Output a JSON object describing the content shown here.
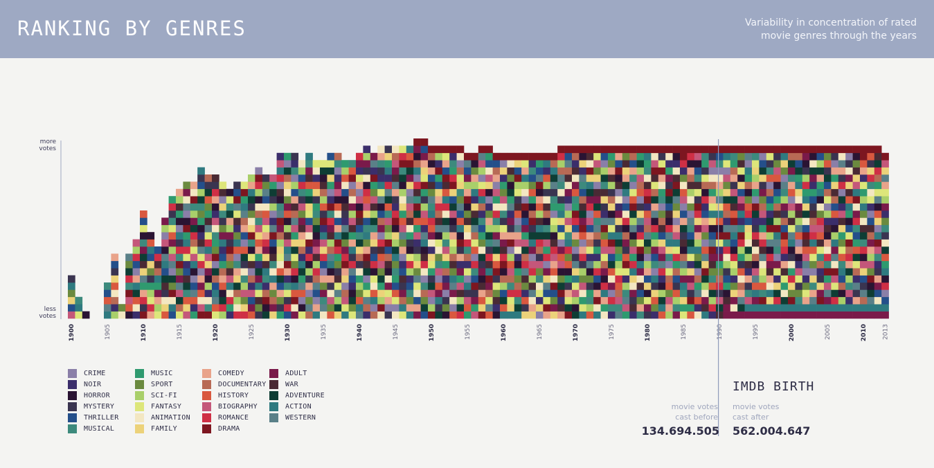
{
  "header": {
    "title": "RANKING BY GENRES",
    "subtitle_line1": "Variability in concentration of rated",
    "subtitle_line2": "movie genres through the years"
  },
  "axis": {
    "top_label_line1": "more",
    "top_label_line2": "votes",
    "bottom_label_line1": "less",
    "bottom_label_line2": "votes"
  },
  "chart_data": {
    "type": "heatmap",
    "title": "RANKING BY GENRES",
    "subtitle": "Variability in concentration of rated movie genres through the years",
    "x_range": [
      1900,
      2013
    ],
    "x_tick_labels": [
      "1900",
      "1905",
      "1910",
      "1915",
      "1920",
      "1925",
      "1930",
      "1935",
      "1940",
      "1945",
      "1950",
      "1955",
      "1960",
      "1965",
      "1970",
      "1975",
      "1980",
      "1985",
      "1990",
      "1995",
      "2000",
      "2005",
      "2010",
      "2013"
    ],
    "major_ticks": [
      "1900",
      "1910",
      "1920",
      "1930",
      "1940",
      "1950",
      "1960",
      "1970",
      "1980",
      "2000",
      "2010"
    ],
    "marker_year": "1990",
    "y_axis": "genres ranked by votes, from less votes (bottom) to more votes (top)",
    "genre_counts_by_year": [
      {
        "year": 1900,
        "count": 6
      },
      {
        "year": 1901,
        "count": 3
      },
      {
        "year": 1902,
        "count": 1
      },
      {
        "year": 1903,
        "count": 0
      },
      {
        "year": 1904,
        "count": 0
      },
      {
        "year": 1905,
        "count": 5
      },
      {
        "year": 1906,
        "count": 9
      },
      {
        "year": 1907,
        "count": 2
      },
      {
        "year": 1908,
        "count": 9
      },
      {
        "year": 1909,
        "count": 11
      },
      {
        "year": 1910,
        "count": 15
      },
      {
        "year": 1911,
        "count": 12
      },
      {
        "year": 1912,
        "count": 10
      },
      {
        "year": 1913,
        "count": 14
      },
      {
        "year": 1914,
        "count": 17
      },
      {
        "year": 1915,
        "count": 18
      },
      {
        "year": 1916,
        "count": 19
      },
      {
        "year": 1917,
        "count": 19
      },
      {
        "year": 1918,
        "count": 21
      },
      {
        "year": 1919,
        "count": 20
      },
      {
        "year": 1920,
        "count": 20
      },
      {
        "year": 1921,
        "count": 19
      },
      {
        "year": 1922,
        "count": 18
      },
      {
        "year": 1923,
        "count": 19
      },
      {
        "year": 1924,
        "count": 19
      },
      {
        "year": 1925,
        "count": 20
      },
      {
        "year": 1926,
        "count": 21
      },
      {
        "year": 1927,
        "count": 20
      },
      {
        "year": 1928,
        "count": 20
      },
      {
        "year": 1929,
        "count": 23
      },
      {
        "year": 1930,
        "count": 23
      },
      {
        "year": 1931,
        "count": 23
      },
      {
        "year": 1932,
        "count": 22
      },
      {
        "year": 1933,
        "count": 23
      },
      {
        "year": 1934,
        "count": 22
      },
      {
        "year": 1935,
        "count": 22
      },
      {
        "year": 1936,
        "count": 23
      },
      {
        "year": 1937,
        "count": 23
      },
      {
        "year": 1938,
        "count": 22
      },
      {
        "year": 1939,
        "count": 22
      },
      {
        "year": 1940,
        "count": 23
      },
      {
        "year": 1941,
        "count": 24
      },
      {
        "year": 1942,
        "count": 23
      },
      {
        "year": 1943,
        "count": 24
      },
      {
        "year": 1944,
        "count": 24
      },
      {
        "year": 1945,
        "count": 24
      },
      {
        "year": 1946,
        "count": 24
      },
      {
        "year": 1947,
        "count": 24
      },
      {
        "year": 1948,
        "count": 25
      },
      {
        "year": 1949,
        "count": 25
      },
      {
        "year": 1950,
        "count": 24
      },
      {
        "year": 1951,
        "count": 24
      },
      {
        "year": 1952,
        "count": 24
      },
      {
        "year": 1953,
        "count": 24
      },
      {
        "year": 1954,
        "count": 24
      },
      {
        "year": 1955,
        "count": 23
      },
      {
        "year": 1956,
        "count": 23
      },
      {
        "year": 1957,
        "count": 24
      },
      {
        "year": 1958,
        "count": 24
      },
      {
        "year": 1959,
        "count": 23
      },
      {
        "year": 1960,
        "count": 23
      },
      {
        "year": 1961,
        "count": 23
      },
      {
        "year": 1962,
        "count": 23
      },
      {
        "year": 1963,
        "count": 23
      },
      {
        "year": 1964,
        "count": 23
      },
      {
        "year": 1965,
        "count": 23
      },
      {
        "year": 1966,
        "count": 23
      },
      {
        "year": 1967,
        "count": 23
      },
      {
        "year": 1968,
        "count": 24
      },
      {
        "year": 1969,
        "count": 24
      },
      {
        "year": 1970,
        "count": 24
      },
      {
        "year": 1971,
        "count": 24
      },
      {
        "year": 1972,
        "count": 24
      },
      {
        "year": 1973,
        "count": 24
      },
      {
        "year": 1974,
        "count": 24
      },
      {
        "year": 1975,
        "count": 24
      },
      {
        "year": 1976,
        "count": 24
      },
      {
        "year": 1977,
        "count": 24
      },
      {
        "year": 1978,
        "count": 24
      },
      {
        "year": 1979,
        "count": 24
      },
      {
        "year": 1980,
        "count": 24
      },
      {
        "year": 1981,
        "count": 24
      },
      {
        "year": 1982,
        "count": 24
      },
      {
        "year": 1983,
        "count": 24
      },
      {
        "year": 1984,
        "count": 24
      },
      {
        "year": 1985,
        "count": 24
      },
      {
        "year": 1986,
        "count": 24
      },
      {
        "year": 1987,
        "count": 24
      },
      {
        "year": 1988,
        "count": 24
      },
      {
        "year": 1989,
        "count": 24
      },
      {
        "year": 1990,
        "count": 24
      },
      {
        "year": 1991,
        "count": 24
      },
      {
        "year": 1992,
        "count": 24
      },
      {
        "year": 1993,
        "count": 24
      },
      {
        "year": 1994,
        "count": 24
      },
      {
        "year": 1995,
        "count": 24
      },
      {
        "year": 1996,
        "count": 24
      },
      {
        "year": 1997,
        "count": 24
      },
      {
        "year": 1998,
        "count": 24
      },
      {
        "year": 1999,
        "count": 24
      },
      {
        "year": 2000,
        "count": 24
      },
      {
        "year": 2001,
        "count": 24
      },
      {
        "year": 2002,
        "count": 24
      },
      {
        "year": 2003,
        "count": 24
      },
      {
        "year": 2004,
        "count": 24
      },
      {
        "year": 2005,
        "count": 24
      },
      {
        "year": 2006,
        "count": 24
      },
      {
        "year": 2007,
        "count": 24
      },
      {
        "year": 2008,
        "count": 24
      },
      {
        "year": 2009,
        "count": 24
      },
      {
        "year": 2010,
        "count": 24
      },
      {
        "year": 2011,
        "count": 24
      },
      {
        "year": 2012,
        "count": 24
      },
      {
        "year": 2013,
        "count": 23
      }
    ]
  },
  "legend": [
    {
      "label": "CRIME",
      "color": "#8a7fa8"
    },
    {
      "label": "NOIR",
      "color": "#3b2e6b"
    },
    {
      "label": "HORROR",
      "color": "#2a1433"
    },
    {
      "label": "MYSTERY",
      "color": "#3a3450"
    },
    {
      "label": "THRILLER",
      "color": "#244f8a"
    },
    {
      "label": "MUSICAL",
      "color": "#3d8a7d"
    },
    {
      "label": "MUSIC",
      "color": "#2f9a6f"
    },
    {
      "label": "SPORT",
      "color": "#6b8a3f"
    },
    {
      "label": "SCI-FI",
      "color": "#a9cf6a"
    },
    {
      "label": "FANTASY",
      "color": "#dde67a"
    },
    {
      "label": "ANIMATION",
      "color": "#f3e7c2"
    },
    {
      "label": "FAMILY",
      "color": "#ecd27a"
    },
    {
      "label": "COMEDY",
      "color": "#e9a38a"
    },
    {
      "label": "DOCUMENTARY",
      "color": "#b86a55"
    },
    {
      "label": "HISTORY",
      "color": "#d9583f"
    },
    {
      "label": "BIOGRAPHY",
      "color": "#c4577a"
    },
    {
      "label": "ROMANCE",
      "color": "#cf2f45"
    },
    {
      "label": "DRAMA",
      "color": "#7d1620"
    },
    {
      "label": "ADULT",
      "color": "#7a1a4a"
    },
    {
      "label": "WAR",
      "color": "#4a2a34"
    },
    {
      "label": "ADVENTURE",
      "color": "#0e3d34"
    },
    {
      "label": "ACTION",
      "color": "#2f7a80"
    },
    {
      "label": "WESTERN",
      "color": "#5a8088"
    }
  ],
  "imdb": {
    "title": "IMDB BIRTH",
    "before_line1": "movie votes",
    "before_line2": "cast before",
    "before_value": "134.694.505",
    "after_line1": "movie votes",
    "after_line2": "cast after",
    "after_value": "562.004.647"
  }
}
